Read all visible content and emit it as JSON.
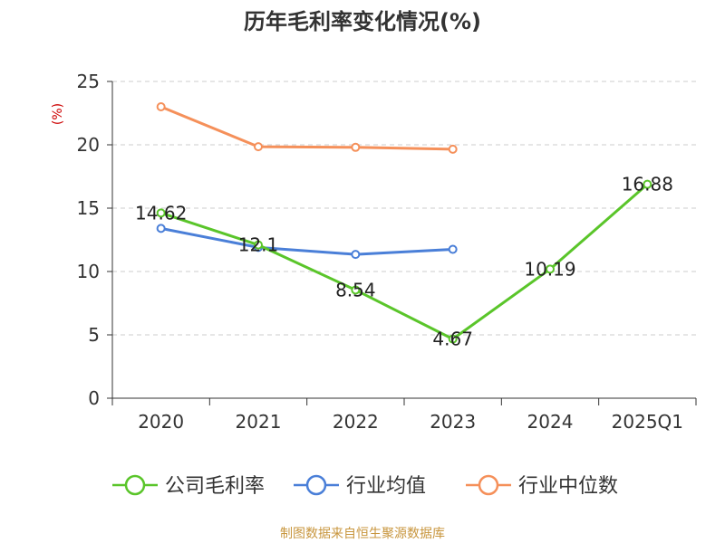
{
  "title": "历年毛利率变化情况(%)",
  "source_text": "制图数据来自恒生聚源数据库",
  "chart_data": {
    "type": "line",
    "title": "历年毛利率变化情况(%)",
    "ylabel": "(%)",
    "xlabel": "",
    "categories": [
      "2020",
      "2021",
      "2022",
      "2023",
      "2024",
      "2025Q1"
    ],
    "ylim": [
      0,
      25
    ],
    "yticks": [
      0,
      5,
      10,
      15,
      20,
      25
    ],
    "grid": true,
    "legend_position": "bottom",
    "series": [
      {
        "name": "公司毛利率",
        "color": "#5ac52a",
        "values": [
          14.62,
          12.1,
          8.54,
          4.67,
          10.19,
          16.88
        ],
        "labels": [
          "14.62",
          "12.1",
          "8.54",
          "4.67",
          "10.19",
          "16.88"
        ]
      },
      {
        "name": "行业均值",
        "color": "#4a7fd8",
        "values": [
          13.4,
          11.9,
          11.35,
          11.75,
          null,
          null
        ]
      },
      {
        "name": "行业中位数",
        "color": "#f5905a",
        "values": [
          23.0,
          19.85,
          19.8,
          19.65,
          null,
          null
        ]
      }
    ]
  }
}
